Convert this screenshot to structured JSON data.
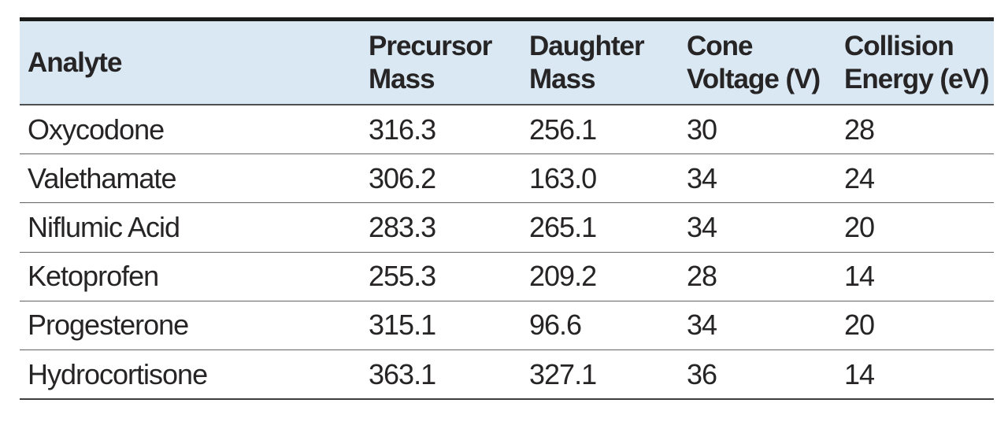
{
  "table": {
    "name": "mrm-acquisition-parameters",
    "columns": [
      {
        "key": "analyte",
        "label": "Analyte"
      },
      {
        "key": "precursor-mass",
        "label": "Precursor\nMass"
      },
      {
        "key": "daughter-mass",
        "label": "Daughter\nMass"
      },
      {
        "key": "cone-voltage",
        "label": "Cone\nVoltage (V)"
      },
      {
        "key": "collision-energy",
        "label": "Collision\nEnergy (eV)"
      }
    ],
    "rows": [
      {
        "analyte": "Oxycodone",
        "precursor_mass": "316.3",
        "daughter_mass": "256.1",
        "cone_voltage": "30",
        "collision_energy": "28"
      },
      {
        "analyte": "Valethamate",
        "precursor_mass": "306.2",
        "daughter_mass": "163.0",
        "cone_voltage": "34",
        "collision_energy": "24"
      },
      {
        "analyte": "Niflumic Acid",
        "precursor_mass": "283.3",
        "daughter_mass": "265.1",
        "cone_voltage": "34",
        "collision_energy": "20"
      },
      {
        "analyte": "Ketoprofen",
        "precursor_mass": "255.3",
        "daughter_mass": "209.2",
        "cone_voltage": "28",
        "collision_energy": "14"
      },
      {
        "analyte": "Progesterone",
        "precursor_mass": "315.1",
        "daughter_mass": "96.6",
        "cone_voltage": "34",
        "collision_energy": "20"
      },
      {
        "analyte": "Hydrocortisone",
        "precursor_mass": "363.1",
        "daughter_mass": "327.1",
        "cone_voltage": "36",
        "collision_energy": "14"
      }
    ],
    "row_field_order": [
      "analyte",
      "precursor_mass",
      "daughter_mass",
      "cone_voltage",
      "collision_energy"
    ]
  },
  "colors": {
    "header_background": "#d9e8f3",
    "top_rule": "#1b1b1a",
    "header_rule": "#4f5052",
    "row_rule": "#616264",
    "bottom_rule": "#3e3d3f",
    "text": "#262425"
  }
}
